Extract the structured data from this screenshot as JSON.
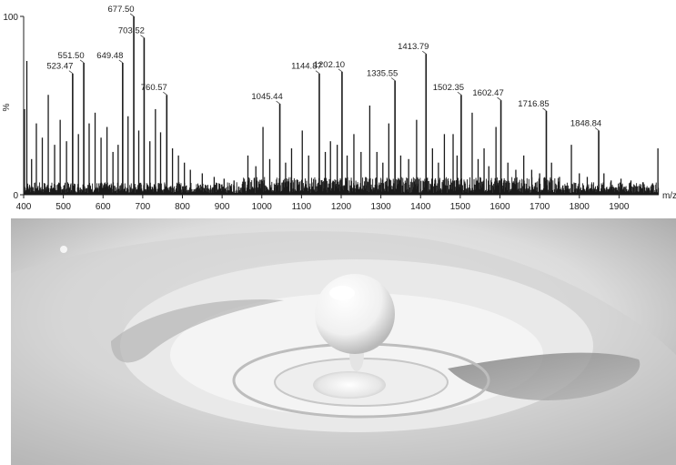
{
  "chart_data": {
    "type": "line",
    "subtype": "mass-spectrum-stick",
    "xlabel": "m/z",
    "ylabel": "%",
    "xlim": [
      400,
      2000
    ],
    "ylim": [
      0,
      100
    ],
    "x_ticks": [
      400,
      500,
      600,
      700,
      800,
      900,
      1000,
      1100,
      1200,
      1300,
      1400,
      1500,
      1600,
      1700,
      1800,
      1900
    ],
    "y_ticks": [
      0,
      100
    ],
    "y_tick_labels": [
      "0",
      "100"
    ],
    "grid": false,
    "legend": "none",
    "line_color": "#1a1a1a",
    "labeled_peaks": [
      {
        "label": "523.47",
        "x": 523.47,
        "y": 68
      },
      {
        "label": "551.50",
        "x": 551.5,
        "y": 74
      },
      {
        "label": "649.48",
        "x": 649.48,
        "y": 74
      },
      {
        "label": "677.50",
        "x": 677.5,
        "y": 100
      },
      {
        "label": "703.52",
        "x": 703.52,
        "y": 88
      },
      {
        "label": "760.57",
        "x": 760.57,
        "y": 56
      },
      {
        "label": "1045.44",
        "x": 1045.44,
        "y": 51
      },
      {
        "label": "1144.87",
        "x": 1144.87,
        "y": 68
      },
      {
        "label": "1202.10",
        "x": 1202.1,
        "y": 69
      },
      {
        "label": "1335.55",
        "x": 1335.55,
        "y": 64
      },
      {
        "label": "1413.79",
        "x": 1413.79,
        "y": 79
      },
      {
        "label": "1502.35",
        "x": 1502.35,
        "y": 56
      },
      {
        "label": "1602.47",
        "x": 1602.47,
        "y": 53
      },
      {
        "label": "1716.85",
        "x": 1716.85,
        "y": 47
      },
      {
        "label": "1848.84",
        "x": 1848.84,
        "y": 36
      }
    ],
    "minor_peaks": [
      {
        "x": 402,
        "y": 48
      },
      {
        "x": 408,
        "y": 75
      },
      {
        "x": 420,
        "y": 20
      },
      {
        "x": 432,
        "y": 40
      },
      {
        "x": 447,
        "y": 32
      },
      {
        "x": 462,
        "y": 56
      },
      {
        "x": 478,
        "y": 28
      },
      {
        "x": 492,
        "y": 42
      },
      {
        "x": 508,
        "y": 30
      },
      {
        "x": 538,
        "y": 34
      },
      {
        "x": 565,
        "y": 40
      },
      {
        "x": 580,
        "y": 46
      },
      {
        "x": 595,
        "y": 32
      },
      {
        "x": 610,
        "y": 38
      },
      {
        "x": 625,
        "y": 24
      },
      {
        "x": 638,
        "y": 28
      },
      {
        "x": 663,
        "y": 44
      },
      {
        "x": 690,
        "y": 36
      },
      {
        "x": 718,
        "y": 30
      },
      {
        "x": 732,
        "y": 48
      },
      {
        "x": 745,
        "y": 35
      },
      {
        "x": 775,
        "y": 26
      },
      {
        "x": 790,
        "y": 22
      },
      {
        "x": 805,
        "y": 18
      },
      {
        "x": 820,
        "y": 14
      },
      {
        "x": 850,
        "y": 12
      },
      {
        "x": 880,
        "y": 10
      },
      {
        "x": 905,
        "y": 9
      },
      {
        "x": 930,
        "y": 8
      },
      {
        "x": 965,
        "y": 22
      },
      {
        "x": 985,
        "y": 16
      },
      {
        "x": 1003,
        "y": 38
      },
      {
        "x": 1020,
        "y": 20
      },
      {
        "x": 1060,
        "y": 18
      },
      {
        "x": 1075,
        "y": 26
      },
      {
        "x": 1102,
        "y": 36
      },
      {
        "x": 1118,
        "y": 22
      },
      {
        "x": 1160,
        "y": 24
      },
      {
        "x": 1173,
        "y": 30
      },
      {
        "x": 1190,
        "y": 28
      },
      {
        "x": 1215,
        "y": 22
      },
      {
        "x": 1232,
        "y": 34
      },
      {
        "x": 1250,
        "y": 24
      },
      {
        "x": 1272,
        "y": 50
      },
      {
        "x": 1290,
        "y": 24
      },
      {
        "x": 1305,
        "y": 18
      },
      {
        "x": 1320,
        "y": 40
      },
      {
        "x": 1350,
        "y": 22
      },
      {
        "x": 1370,
        "y": 20
      },
      {
        "x": 1390,
        "y": 42
      },
      {
        "x": 1430,
        "y": 26
      },
      {
        "x": 1445,
        "y": 18
      },
      {
        "x": 1460,
        "y": 34
      },
      {
        "x": 1482,
        "y": 34
      },
      {
        "x": 1492,
        "y": 22
      },
      {
        "x": 1530,
        "y": 46
      },
      {
        "x": 1545,
        "y": 20
      },
      {
        "x": 1560,
        "y": 26
      },
      {
        "x": 1572,
        "y": 16
      },
      {
        "x": 1590,
        "y": 38
      },
      {
        "x": 1620,
        "y": 18
      },
      {
        "x": 1640,
        "y": 14
      },
      {
        "x": 1660,
        "y": 22
      },
      {
        "x": 1680,
        "y": 14
      },
      {
        "x": 1700,
        "y": 12
      },
      {
        "x": 1730,
        "y": 18
      },
      {
        "x": 1750,
        "y": 10
      },
      {
        "x": 1780,
        "y": 28
      },
      {
        "x": 1800,
        "y": 12
      },
      {
        "x": 1820,
        "y": 10
      },
      {
        "x": 1862,
        "y": 12
      },
      {
        "x": 1880,
        "y": 8
      },
      {
        "x": 1905,
        "y": 9
      },
      {
        "x": 1930,
        "y": 8
      },
      {
        "x": 1960,
        "y": 7
      },
      {
        "x": 1985,
        "y": 6
      },
      {
        "x": 1998,
        "y": 26
      }
    ]
  },
  "photo": {
    "subject": "milk-drop-splash",
    "tone": "grayscale",
    "background_color": "#d8d8d8",
    "highlight_color": "#f7f7f7",
    "shadow_color": "#8a8a8a"
  }
}
